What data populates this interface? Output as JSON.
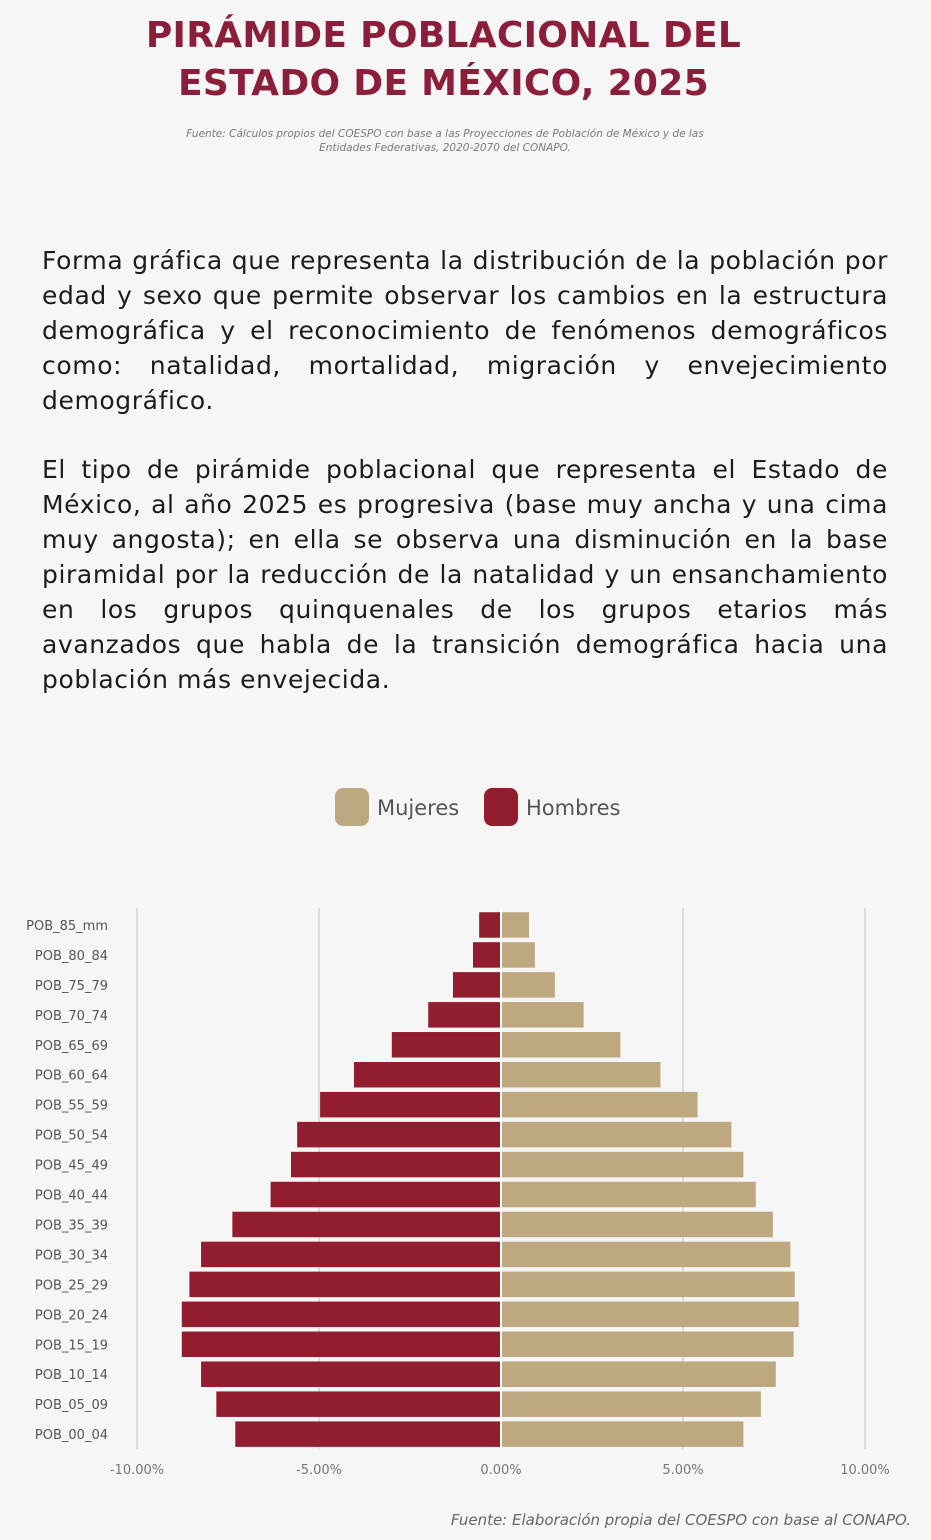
{
  "title_line1": "PIRÁMIDE POBLACIONAL DEL",
  "title_line2": "ESTADO DE MÉXICO, 2025",
  "source_top_line1": "Fuente: Cálculos propios del COESPO con base a las Proyecciones de Población de México y de las",
  "source_top_line2": "Entidades Federativas, 2020-2070 del CONAPO.",
  "paragraph1": "Forma gráfica que representa la distribución de la población por edad y sexo que permite observar los cambios en la estructura demográfica y el reconocimiento de fenómenos demográficos como: natalidad, mortalidad, migración y envejecimiento demográfico.",
  "paragraph2": "El tipo de pirámide poblacional que representa el Estado de México, al año 2025 es progresiva (base muy ancha y una cima muy angosta); en ella se observa una disminución en la base piramidal por la reducción de la natalidad y un ensanchamiento en los grupos quinquenales de los grupos etarios más avanzados que habla de la transición demográfica hacia una población más envejecida.",
  "source_bottom": "Fuente:  Elaboración propia del COESPO con base al CONAPO.",
  "colors": {
    "title": "#8b1f3b",
    "hombres": "#921d2f",
    "mujeres": "#bea880"
  },
  "chart_data": {
    "type": "bar",
    "orientation": "horizontal",
    "title": "",
    "legend": {
      "position": "top-center",
      "entries": [
        "Mujeres",
        "Hombres"
      ]
    },
    "categories": [
      "POB_85_mm",
      "POB_80_84",
      "POB_75_79",
      "POB_70_74",
      "POB_65_69",
      "POB_60_64",
      "POB_55_59",
      "POB_50_54",
      "POB_45_49",
      "POB_40_44",
      "POB_35_39",
      "POB_30_34",
      "POB_25_29",
      "POB_20_24",
      "POB_15_19",
      "POB_10_14",
      "POB_05_09",
      "POB_00_04"
    ],
    "series": [
      {
        "name": "Hombres",
        "color": "#921d2f",
        "values": [
          -0.6,
          -0.77,
          -1.32,
          -2.0,
          -3.0,
          -4.04,
          -4.97,
          -5.6,
          -5.77,
          -6.33,
          -7.38,
          -8.24,
          -8.56,
          -8.77,
          -8.77,
          -8.24,
          -7.82,
          -7.3
        ]
      },
      {
        "name": "Mujeres",
        "color": "#bea880",
        "values": [
          0.77,
          0.93,
          1.48,
          2.27,
          3.28,
          4.38,
          5.4,
          6.33,
          6.66,
          7.0,
          7.47,
          7.95,
          8.07,
          8.18,
          8.04,
          7.55,
          7.14,
          6.66
        ]
      }
    ],
    "xlim": [
      -10,
      10
    ],
    "xticks": [
      -10,
      -5,
      0,
      5,
      10
    ],
    "xtick_labels": [
      "-10.00%",
      "-5.00%",
      "0.00%",
      "5.00%",
      "10.00%"
    ],
    "grid": "vertical"
  }
}
